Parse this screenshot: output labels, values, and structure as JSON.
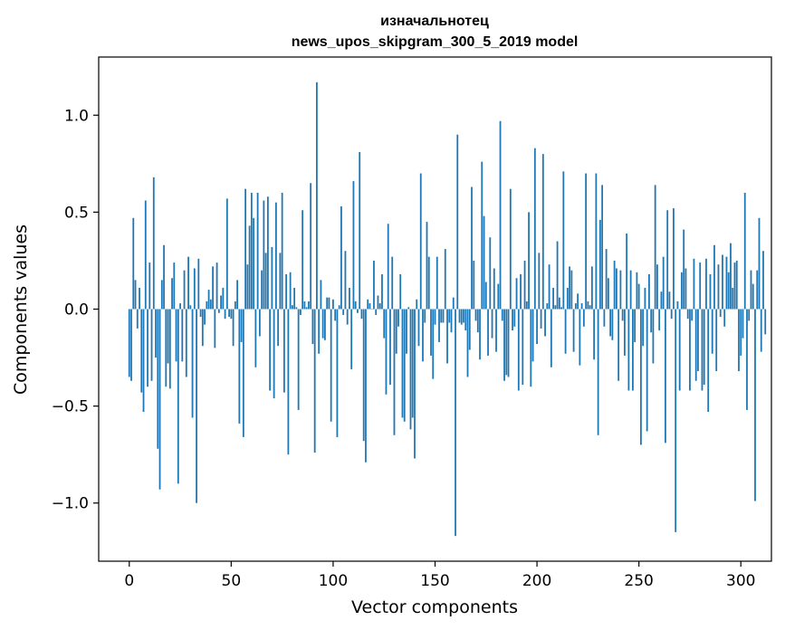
{
  "chart_data": {
    "type": "bar",
    "title_lines": [
      "изначальнотец",
      "news_upos_skipgram_300_5_2019 model"
    ],
    "xlabel": "Vector components",
    "ylabel": "Components values",
    "xlim": [
      -15,
      315
    ],
    "ylim": [
      -1.3,
      1.3
    ],
    "xticks": [
      0,
      50,
      100,
      150,
      200,
      250,
      300
    ],
    "yticks": [
      -1.0,
      -0.5,
      0.0,
      0.5,
      1.0
    ],
    "xtick_labels": [
      "0",
      "50",
      "100",
      "150",
      "200",
      "250",
      "300"
    ],
    "ytick_labels": [
      "−1.0",
      "−0.5",
      "0.0",
      "0.5",
      "1.0"
    ],
    "bar_color": "#1f77b4",
    "grid": false,
    "values": [
      -0.35,
      -0.37,
      0.47,
      0.15,
      -0.1,
      0.11,
      -0.43,
      -0.53,
      0.56,
      -0.4,
      0.24,
      -0.37,
      0.68,
      -0.25,
      -0.72,
      -0.93,
      0.15,
      0.33,
      -0.4,
      -0.28,
      -0.41,
      0.16,
      0.24,
      -0.27,
      -0.9,
      0.03,
      -0.27,
      0.2,
      -0.35,
      0.27,
      0.02,
      -0.56,
      0.21,
      -1.0,
      0.26,
      -0.04,
      -0.19,
      -0.08,
      0.04,
      0.1,
      0.05,
      0.22,
      -0.2,
      0.24,
      -0.02,
      0.07,
      0.11,
      -0.05,
      0.57,
      -0.04,
      -0.05,
      -0.19,
      0.04,
      0.15,
      -0.59,
      -0.17,
      -0.66,
      0.62,
      0.23,
      0.43,
      0.6,
      0.47,
      -0.3,
      0.6,
      -0.14,
      0.2,
      0.56,
      0.29,
      0.58,
      -0.42,
      0.32,
      -0.46,
      0.55,
      -0.19,
      0.29,
      0.6,
      -0.43,
      0.18,
      -0.75,
      0.19,
      0.02,
      0.11,
      0.01,
      -0.52,
      -0.03,
      0.51,
      0.04,
      0.01,
      0.04,
      0.65,
      -0.18,
      -0.74,
      1.17,
      -0.23,
      0.15,
      -0.15,
      -0.16,
      0.06,
      0.06,
      -0.58,
      0.05,
      -0.06,
      -0.66,
      0.02,
      0.53,
      -0.03,
      0.3,
      -0.08,
      0.11,
      -0.31,
      0.66,
      0.04,
      -0.02,
      0.81,
      -0.05,
      -0.68,
      -0.79,
      0.05,
      0.03,
      0.0,
      0.25,
      -0.03,
      0.07,
      0.03,
      0.18,
      -0.15,
      -0.44,
      0.44,
      -0.39,
      0.27,
      -0.65,
      -0.23,
      -0.09,
      0.18,
      -0.56,
      -0.58,
      -0.23,
      0.01,
      -0.62,
      -0.56,
      -0.77,
      0.05,
      -0.19,
      0.7,
      -0.27,
      -0.07,
      0.45,
      0.27,
      -0.24,
      -0.36,
      -0.08,
      0.27,
      -0.17,
      -0.07,
      -0.07,
      0.31,
      -0.28,
      -0.07,
      -0.12,
      0.06,
      -1.17,
      0.9,
      -0.07,
      -0.08,
      -0.07,
      -0.11,
      -0.35,
      -0.21,
      0.63,
      0.25,
      -0.06,
      -0.12,
      -0.26,
      0.76,
      0.48,
      0.14,
      -0.24,
      0.37,
      -0.15,
      0.21,
      -0.22,
      0.13,
      0.97,
      -0.06,
      -0.37,
      -0.34,
      -0.35,
      0.62,
      -0.11,
      -0.09,
      0.16,
      -0.42,
      0.18,
      -0.39,
      0.25,
      0.04,
      0.5,
      -0.4,
      -0.27,
      0.83,
      -0.18,
      0.29,
      -0.1,
      0.8,
      -0.14,
      0.03,
      0.23,
      -0.3,
      0.11,
      0.02,
      0.35,
      0.06,
      0.01,
      0.71,
      -0.23,
      0.11,
      0.22,
      0.2,
      -0.22,
      0.03,
      0.08,
      -0.29,
      0.03,
      -0.09,
      0.7,
      0.04,
      0.02,
      0.22,
      -0.26,
      0.7,
      -0.65,
      0.46,
      0.64,
      -0.09,
      0.31,
      0.16,
      -0.14,
      -0.16,
      0.25,
      0.21,
      -0.37,
      0.2,
      -0.06,
      -0.24,
      0.39,
      -0.42,
      0.2,
      -0.42,
      -0.17,
      0.19,
      0.13,
      -0.7,
      -0.19,
      0.11,
      -0.63,
      0.18,
      -0.12,
      -0.28,
      0.64,
      0.23,
      -0.11,
      0.09,
      0.27,
      -0.69,
      0.51,
      0.09,
      -0.05,
      0.52,
      -1.15,
      0.04,
      -0.42,
      0.19,
      0.41,
      0.21,
      -0.05,
      -0.42,
      -0.06,
      0.26,
      -0.37,
      -0.32,
      0.24,
      -0.42,
      -0.39,
      0.26,
      -0.53,
      0.18,
      -0.23,
      0.33,
      -0.32,
      0.23,
      -0.04,
      0.28,
      -0.09,
      0.27,
      0.19,
      0.34,
      0.11,
      0.24,
      0.25,
      -0.32,
      -0.24,
      -0.15,
      0.6,
      -0.52,
      -0.06,
      0.2,
      0.13,
      -0.99,
      0.2,
      0.47,
      -0.22,
      0.3,
      -0.13
    ]
  }
}
